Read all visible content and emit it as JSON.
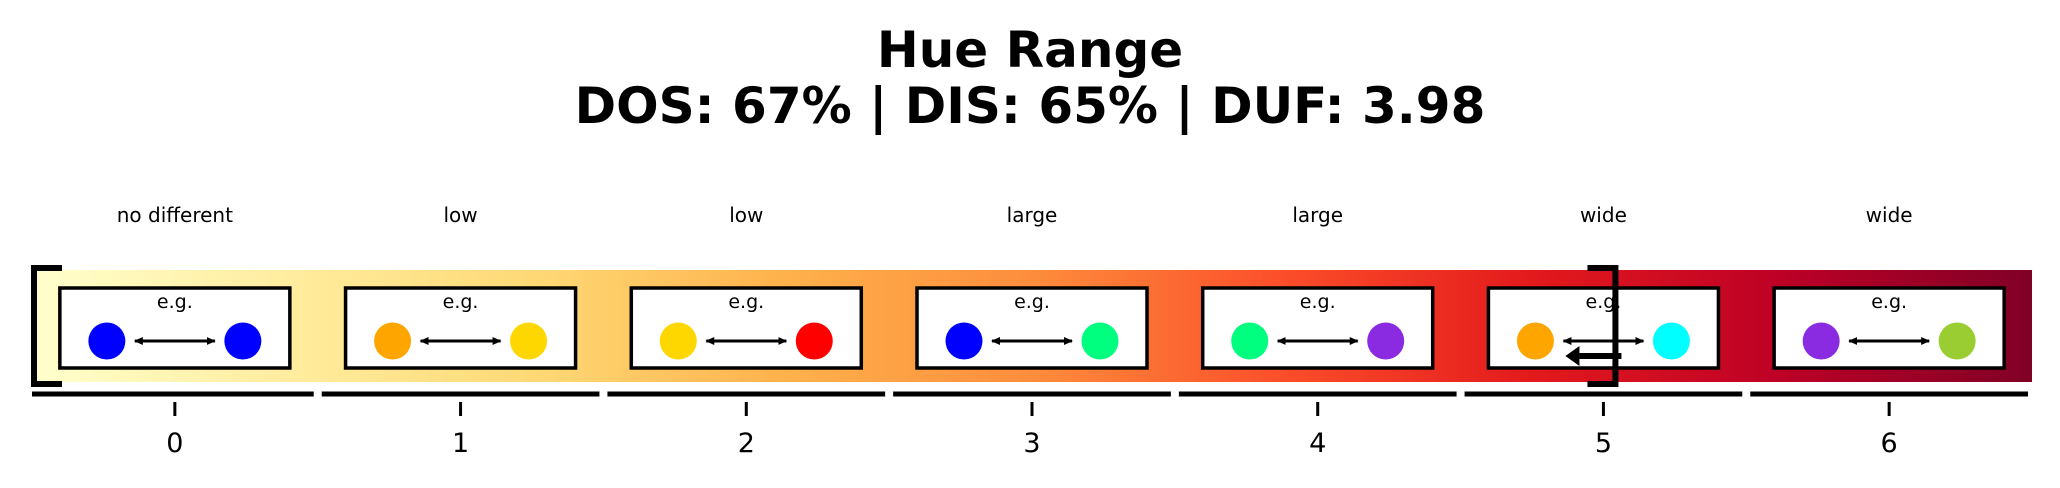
{
  "title": "Hue Range",
  "subtitle": "DOS: 67% | DIS: 65% | DUF: 3.98",
  "scale": {
    "gradient_stops": [
      "#ffffcc",
      "#ffeda0",
      "#fed976",
      "#feb24c",
      "#fd8d3c",
      "#fc4e2a",
      "#e31a1c",
      "#bd0026",
      "#800026"
    ],
    "levels": [
      {
        "tick": "0",
        "label": "no different",
        "example": "e.g.",
        "color_a": "#0000ff",
        "color_b": "#0000ff"
      },
      {
        "tick": "1",
        "label": "low",
        "example": "e.g.",
        "color_a": "#ffa500",
        "color_b": "#ffd700"
      },
      {
        "tick": "2",
        "label": "low",
        "example": "e.g.",
        "color_a": "#ffd700",
        "color_b": "#ff0000"
      },
      {
        "tick": "3",
        "label": "large",
        "example": "e.g.",
        "color_a": "#0000ff",
        "color_b": "#00ff7f"
      },
      {
        "tick": "4",
        "label": "large",
        "example": "e.g.",
        "color_a": "#00ff7f",
        "color_b": "#8a2be2"
      },
      {
        "tick": "5",
        "label": "wide",
        "example": "e.g.",
        "color_a": "#ffa500",
        "color_b": "#00ffff"
      },
      {
        "tick": "6",
        "label": "wide",
        "example": "e.g.",
        "color_a": "#8a2be2",
        "color_b": "#9acd32"
      }
    ],
    "bracket_start_level": 0,
    "bracket_end_level": 5,
    "marker_level": 5
  }
}
